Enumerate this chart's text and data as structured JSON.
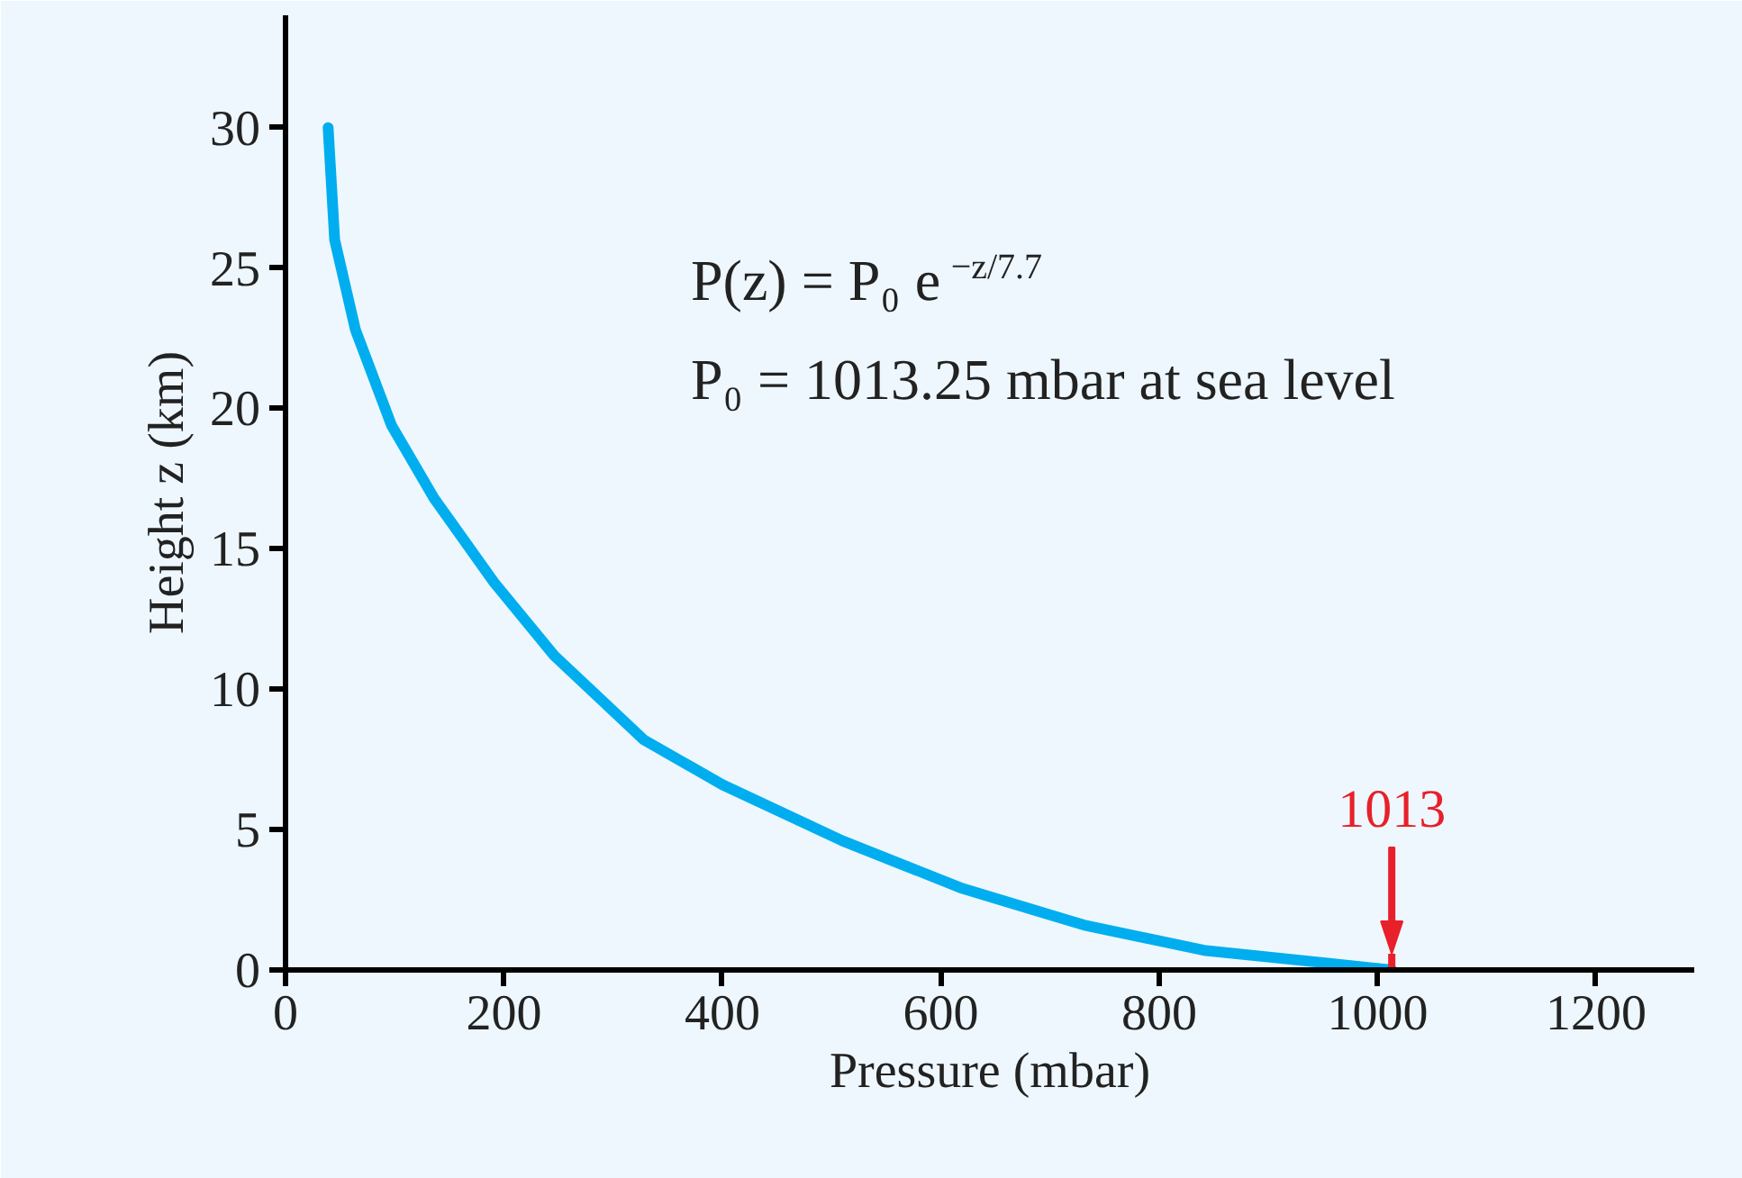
{
  "chart_data": {
    "type": "line",
    "xlabel": "Pressure (mbar)",
    "ylabel": "Height z (km)",
    "annotations": [
      "P(z) = P₀ e$^{−z/7.7}$",
      "P₀ = 1013.25 mbar at sea level"
    ],
    "series": [
      {
        "color": "#00aeef",
        "x": [
          39,
          45,
          64,
          97,
          136,
          191,
          246,
          328,
          400,
          510,
          620,
          731,
          841,
          950,
          1013
        ],
        "values": [
          30,
          26,
          22.8,
          19.4,
          16.8,
          13.8,
          11.2,
          8.2,
          6.6,
          4.6,
          2.9,
          1.6,
          0.7,
          0.26,
          0
        ]
      }
    ],
    "xlim": [
      0,
      1290
    ],
    "ylim": [
      0,
      34
    ],
    "xticks": [
      0,
      200,
      400,
      600,
      800,
      1000,
      1200
    ],
    "yticks": [
      0,
      5,
      10,
      15,
      20,
      25,
      30
    ],
    "ref_lines": [
      {
        "axis": "x",
        "value": 1013,
        "label": "1013",
        "color": "#e8202a"
      }
    ],
    "grid": false,
    "marker": "none",
    "line_style": "solid"
  }
}
